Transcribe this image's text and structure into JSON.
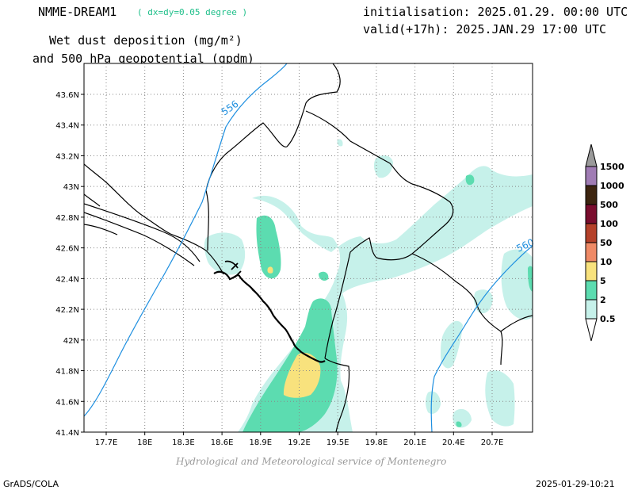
{
  "header": {
    "model_name": "NMME-DREAM1",
    "model_resolution": "( dx=dy=0.05 degree )",
    "initialisation": "initialisation: 2025.01.29. 00:00 UTC",
    "valid": "valid(+17h): 2025.JAN.29 17:00 UTC",
    "title_line1": "Wet dust deposition (mg/m²)",
    "title_line2": "and 500 hPa geopotential (gpdm)"
  },
  "map": {
    "lat_labels": [
      "43.6N",
      "43.4N",
      "43.2N",
      "43N",
      "42.8N",
      "42.6N",
      "42.4N",
      "42.2N",
      "42N",
      "41.8N",
      "41.6N",
      "41.4N"
    ],
    "lon_labels": [
      "17.7E",
      "18E",
      "18.3E",
      "18.6E",
      "18.9E",
      "19.2E",
      "19.5E",
      "19.8E",
      "20.1E",
      "20.4E",
      "20.7E"
    ],
    "contour_labels": [
      "556",
      "560"
    ],
    "contour_color": "#1e8fe0"
  },
  "legend": {
    "levels": [
      "1500",
      "1000",
      "500",
      "100",
      "50",
      "10",
      "5",
      "2",
      "0.5"
    ],
    "colors": [
      "#9a9a9a",
      "#a07cb4",
      "#3d2510",
      "#7a0d2e",
      "#b5412a",
      "#ef8a66",
      "#f8e27d",
      "#5cdcb0",
      "#c6f1ea",
      "#ffffff"
    ]
  },
  "footer": {
    "credit": "Hydrological and Meteorological service of Montenegro",
    "left": "GrADS/COLA",
    "right": "2025-01-29-10:21"
  }
}
